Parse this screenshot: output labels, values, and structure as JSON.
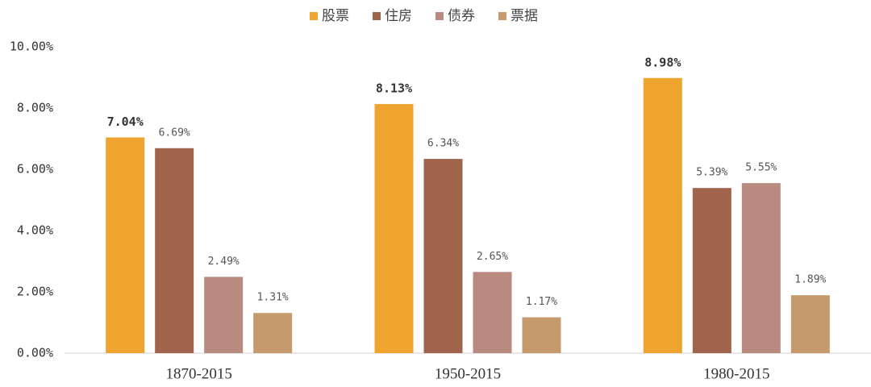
{
  "chart_data": {
    "type": "bar",
    "categories": [
      "1870-2015",
      "1950-2015",
      "1980-2015"
    ],
    "series": [
      {
        "name": "股票",
        "color": "#f0a430",
        "values": [
          7.04,
          8.13,
          8.98
        ],
        "value_labels": [
          "7.04%",
          "8.13%",
          "8.98%"
        ]
      },
      {
        "name": "住房",
        "color": "#a0634b",
        "values": [
          6.69,
          6.34,
          5.39
        ],
        "value_labels": [
          "6.69%",
          "6.34%",
          "5.39%"
        ]
      },
      {
        "name": "债券",
        "color": "#b88a80",
        "values": [
          2.49,
          2.65,
          5.55
        ],
        "value_labels": [
          "2.49%",
          "2.65%",
          "5.55%"
        ]
      },
      {
        "name": "票据",
        "color": "#c59a6c",
        "values": [
          1.31,
          1.17,
          1.89
        ],
        "value_labels": [
          "1.31%",
          "1.17%",
          "1.89%"
        ]
      }
    ],
    "ylim": [
      0,
      10
    ],
    "yticks": [
      {
        "value": 0,
        "label": "0.00%"
      },
      {
        "value": 2,
        "label": "2.00%"
      },
      {
        "value": 4,
        "label": "4.00%"
      },
      {
        "value": 6,
        "label": "6.00%"
      },
      {
        "value": 8,
        "label": "8.00%"
      },
      {
        "value": 10,
        "label": "10.00%"
      }
    ],
    "legend": "top"
  }
}
